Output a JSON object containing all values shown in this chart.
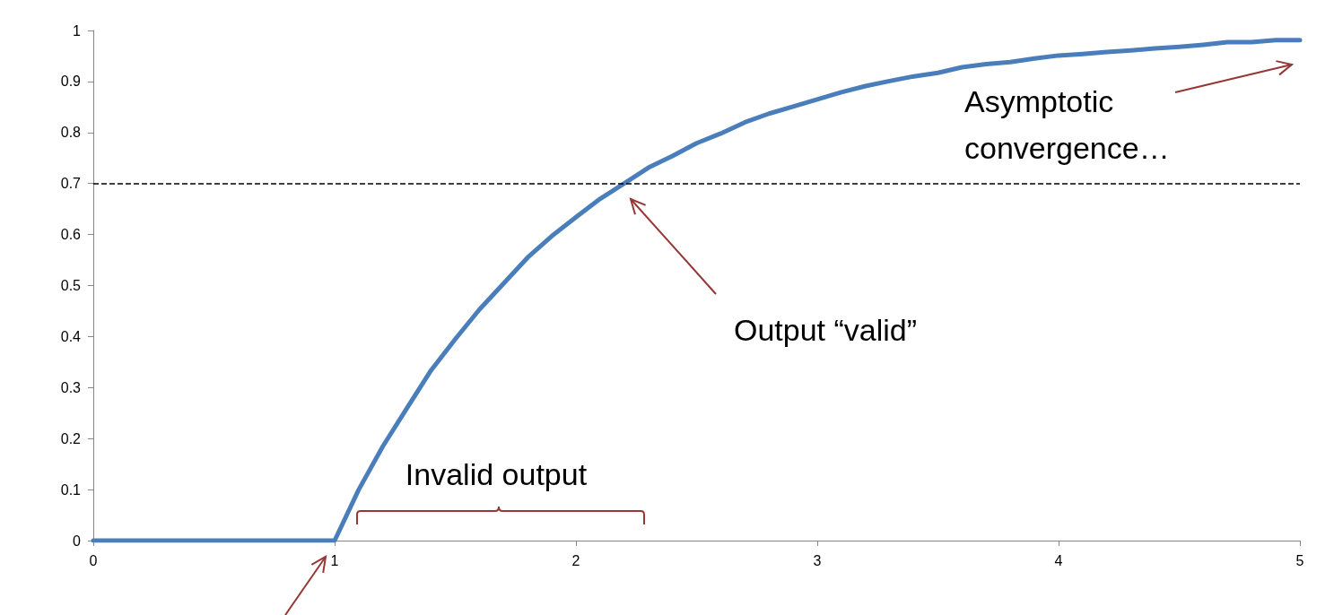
{
  "chart_data": {
    "type": "line",
    "x": [
      0,
      0.1,
      0.2,
      0.3,
      0.4,
      0.5,
      0.6,
      0.7,
      0.8,
      0.9,
      1,
      1.1,
      1.2,
      1.3,
      1.4,
      1.5,
      1.6,
      1.7,
      1.8,
      1.9,
      2,
      2.1,
      2.2,
      2.3,
      2.4,
      2.5,
      2.6,
      2.7,
      2.8,
      2.9,
      3,
      3.1,
      3.2,
      3.3,
      3.4,
      3.5,
      3.6,
      3.7,
      3.8,
      3.9,
      4,
      4.1,
      4.2,
      4.3,
      4.4,
      4.5,
      4.6,
      4.7,
      4.8,
      4.9,
      5
    ],
    "series": [
      {
        "color": "#4a7ebb",
        "values": [
          0,
          0,
          0,
          0,
          0,
          0,
          0,
          0,
          0,
          0,
          0,
          0.1,
          0.185,
          0.26,
          0.334,
          0.395,
          0.453,
          0.504,
          0.555,
          0.597,
          0.634,
          0.67,
          0.7,
          0.731,
          0.754,
          0.779,
          0.798,
          0.82,
          0.837,
          0.851,
          0.865,
          0.879,
          0.891,
          0.901,
          0.91,
          0.917,
          0.928,
          0.934,
          0.938,
          0.945,
          0.951,
          0.954,
          0.958,
          0.961,
          0.965,
          0.968,
          0.972,
          0.977,
          0.977,
          0.981,
          0.981
        ]
      }
    ],
    "xlim": [
      0,
      5
    ],
    "xticks": [
      0,
      1,
      2,
      3,
      4,
      5
    ],
    "ylim": [
      0,
      1
    ],
    "yticks": [
      0,
      0.1,
      0.2,
      0.3,
      0.4,
      0.5,
      0.6,
      0.7,
      0.8,
      0.9,
      1
    ],
    "grid": false,
    "marker": "none",
    "line_style": "solid",
    "ref_lines": [
      {
        "axis": "y",
        "value": 0.7,
        "color": "#000000",
        "line_style": "dashed"
      }
    ],
    "annotations": [
      "Output “valid”",
      "Asymptotic\nconvergence…",
      "Invalid output"
    ]
  }
}
